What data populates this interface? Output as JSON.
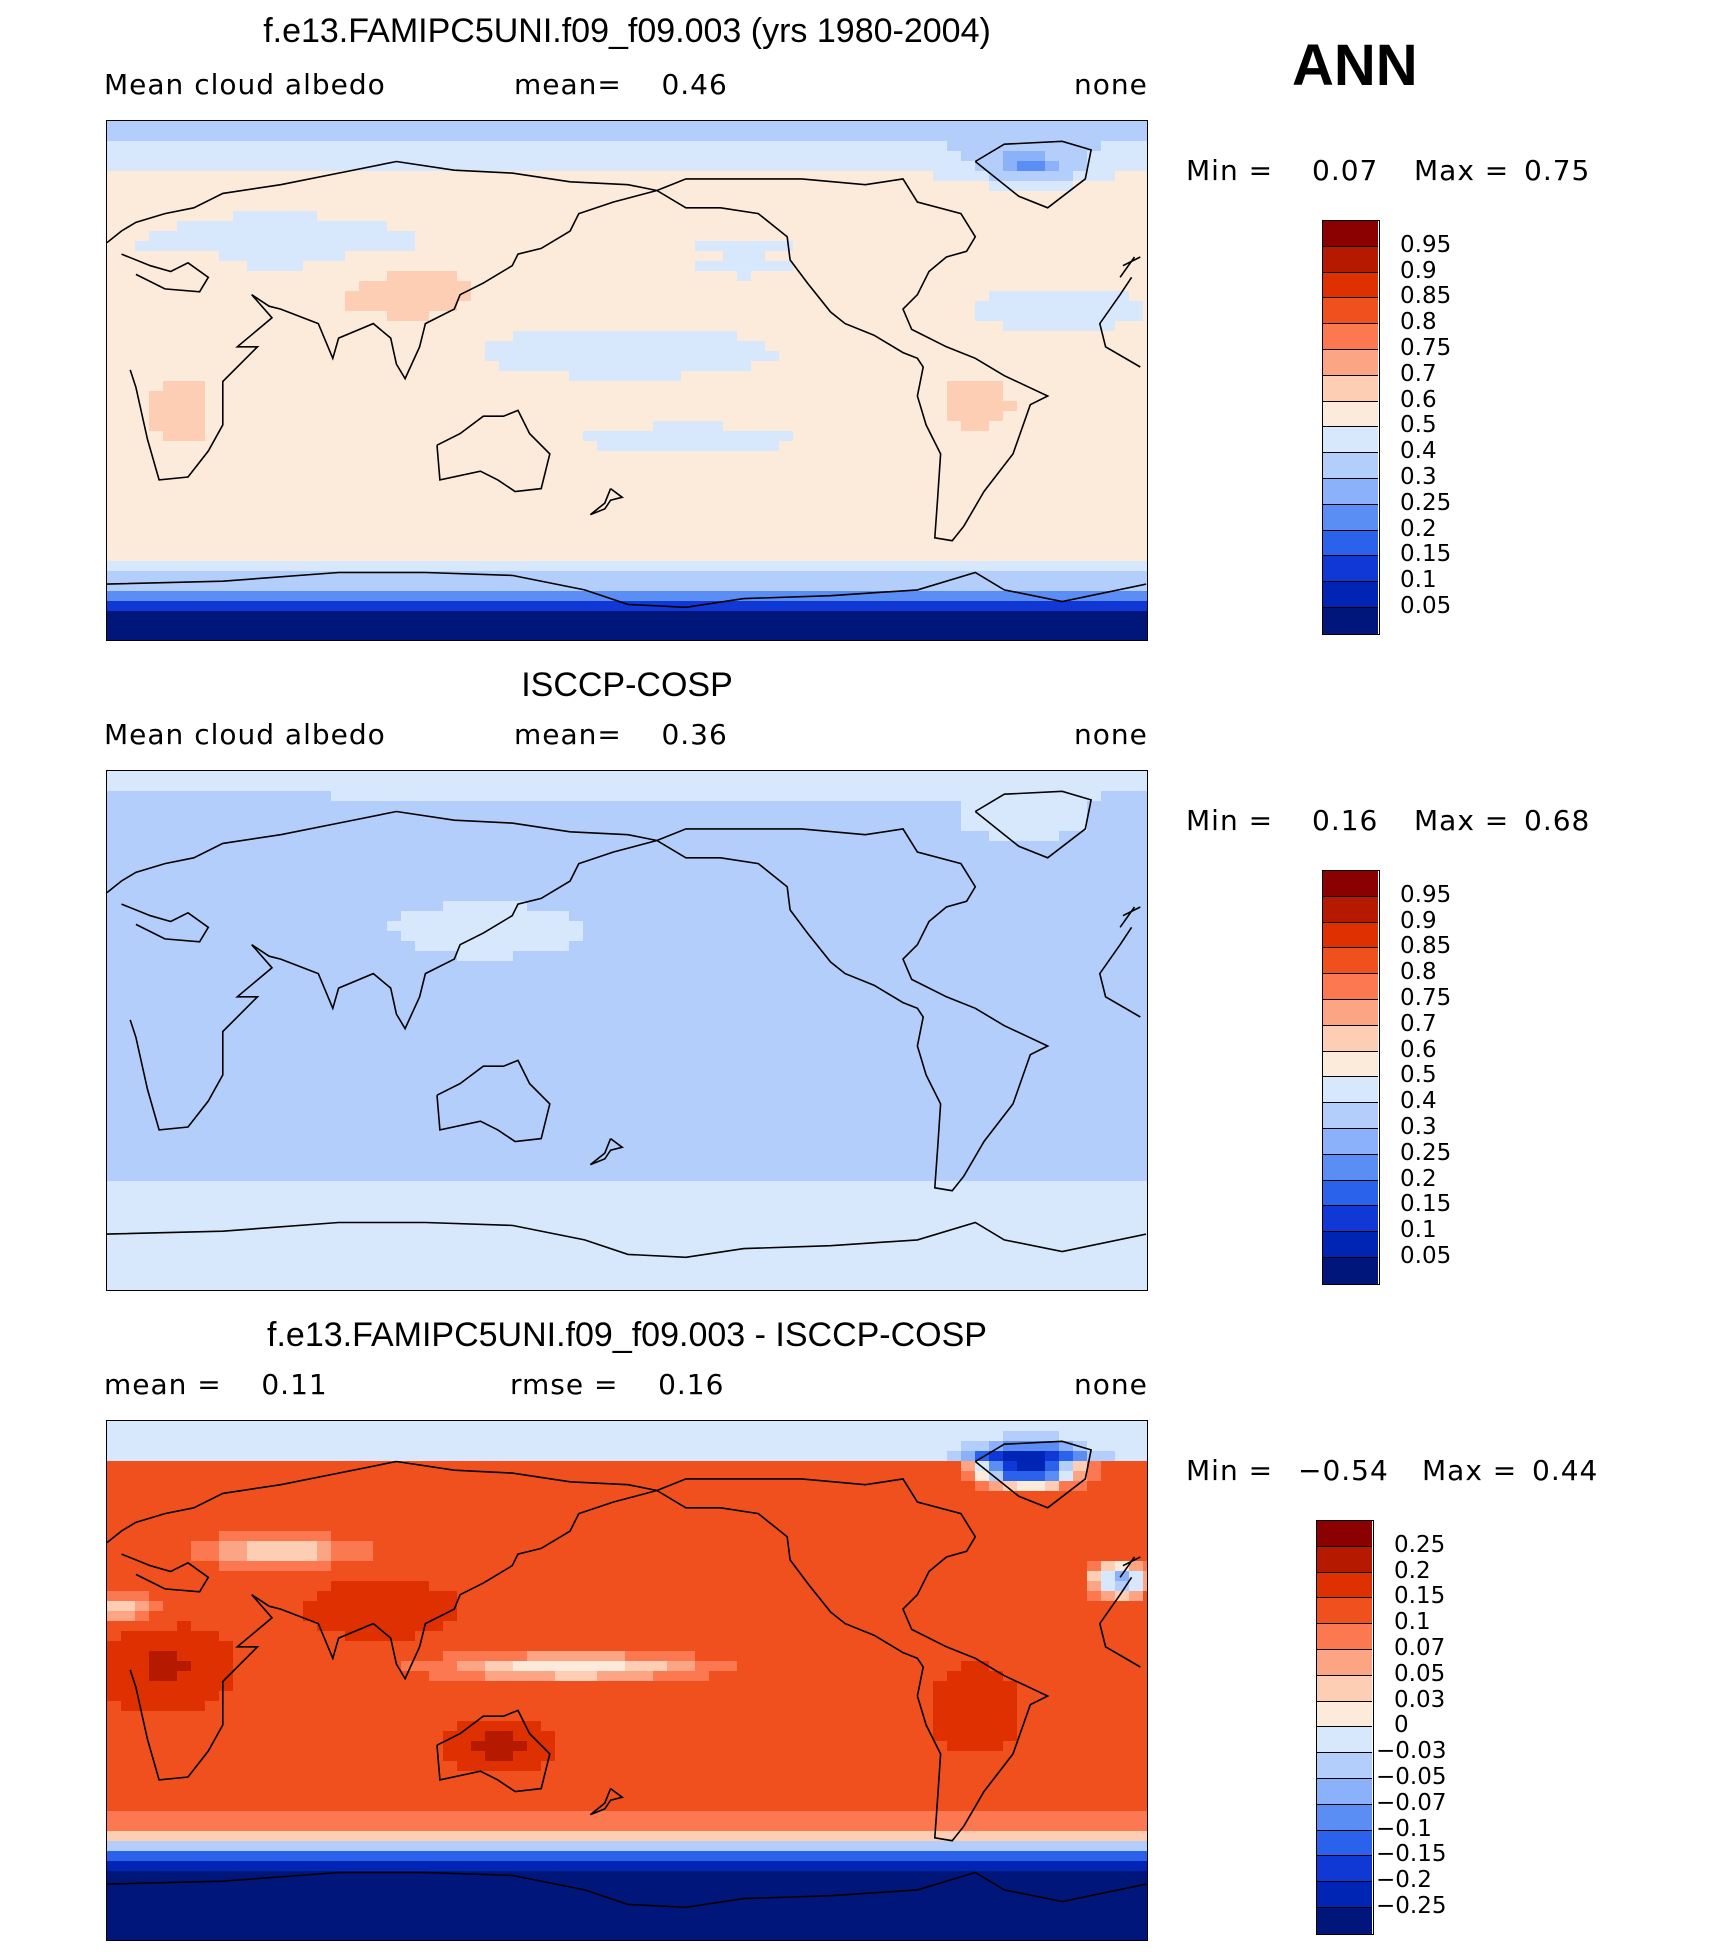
{
  "season": "ANN",
  "panels": [
    {
      "title": "f.e13.FAMIPC5UNI.f09_f09.003 (yrs 1980-2004)",
      "left_label": "Mean cloud albedo",
      "center_label": "mean=    0.46",
      "right_label": "none",
      "min_label": "Min =",
      "min_value": "0.07",
      "max_label": "Max =",
      "max_value": "0.75",
      "colorbar": {
        "labels": [
          "0.95",
          "0.9",
          "0.85",
          "0.8",
          "0.75",
          "0.7",
          "0.6",
          "0.5",
          "0.4",
          "0.3",
          "0.25",
          "0.2",
          "0.15",
          "0.1",
          "0.05"
        ],
        "colors": [
          "#8b0000",
          "#b51a00",
          "#de3000",
          "#f0501e",
          "#fb7850",
          "#fca584",
          "#fdcdb4",
          "#fcebda",
          "#d7e8fc",
          "#b4cefb",
          "#8ab1f9",
          "#5a8ef5",
          "#2a62ec",
          "#1038d4",
          "#0024b4",
          "#00167a"
        ]
      },
      "field": "model"
    },
    {
      "title": "ISCCP-COSP",
      "left_label": "Mean cloud albedo",
      "center_label": "mean=    0.36",
      "right_label": "none",
      "min_label": "Min =",
      "min_value": "0.16",
      "max_label": "Max =",
      "max_value": "0.68",
      "colorbar": {
        "labels": [
          "0.95",
          "0.9",
          "0.85",
          "0.8",
          "0.75",
          "0.7",
          "0.6",
          "0.5",
          "0.4",
          "0.3",
          "0.25",
          "0.2",
          "0.15",
          "0.1",
          "0.05"
        ],
        "colors": [
          "#8b0000",
          "#b51a00",
          "#de3000",
          "#f0501e",
          "#fb7850",
          "#fca584",
          "#fdcdb4",
          "#fcebda",
          "#d7e8fc",
          "#b4cefb",
          "#8ab1f9",
          "#5a8ef5",
          "#2a62ec",
          "#1038d4",
          "#0024b4",
          "#00167a"
        ]
      },
      "field": "obs"
    },
    {
      "title": "f.e13.FAMIPC5UNI.f09_f09.003 - ISCCP-COSP",
      "left_label": "mean =    0.11",
      "center_label": "rmse =    0.16",
      "right_label": "none",
      "min_label": "Min =",
      "min_value": "−0.54",
      "max_label": "Max =",
      "max_value": "0.44",
      "colorbar": {
        "labels": [
          "0.25",
          "0.2",
          "0.15",
          "0.1",
          "0.07",
          "0.05",
          "0.03",
          "0",
          "−0.03",
          "−0.05",
          "−0.07",
          "−0.1",
          "−0.15",
          "−0.2",
          "−0.25"
        ],
        "colors": [
          "#8b0000",
          "#b51a00",
          "#de3000",
          "#f0501e",
          "#fb7850",
          "#fca584",
          "#fdcdb4",
          "#fcebda",
          "#d7e8fc",
          "#b4cefb",
          "#8ab1f9",
          "#5a8ef5",
          "#2a62ec",
          "#1038d4",
          "#0024b4",
          "#00167a"
        ]
      },
      "field": "diff"
    }
  ]
}
